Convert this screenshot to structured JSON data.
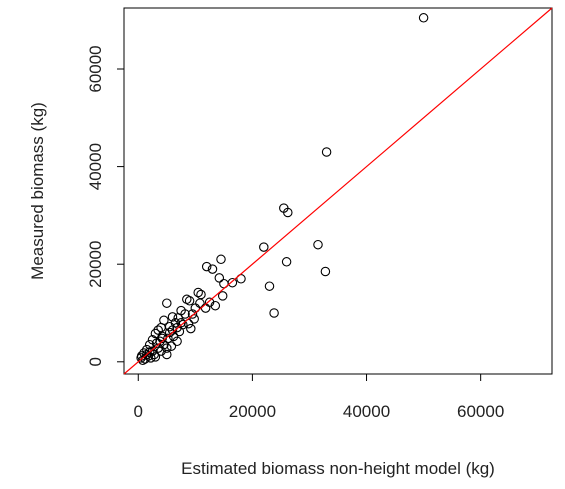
{
  "chart_data": {
    "type": "scatter",
    "title": "",
    "xlabel": "Estimated biomass non-height model (kg)",
    "ylabel": "Measured biomass (kg)",
    "xlim": [
      -2500,
      72500
    ],
    "ylim": [
      -2500,
      72500
    ],
    "xticks": [
      0,
      20000,
      40000,
      60000
    ],
    "yticks": [
      0,
      20000,
      40000,
      60000
    ],
    "grid": false,
    "legend": "none",
    "reference_line": {
      "label": "",
      "slope": 1,
      "intercept": 0,
      "color": "#ff0000"
    },
    "marker": {
      "shape": "circle-open",
      "color": "#000000"
    },
    "series": [
      {
        "name": "",
        "points": [
          [
            50000,
            70500
          ],
          [
            33000,
            43000
          ],
          [
            25500,
            31500
          ],
          [
            26200,
            30600
          ],
          [
            22000,
            23500
          ],
          [
            31500,
            24000
          ],
          [
            32800,
            18500
          ],
          [
            26000,
            20500
          ],
          [
            23000,
            15500
          ],
          [
            23800,
            10000
          ],
          [
            14500,
            21000
          ],
          [
            12000,
            19500
          ],
          [
            13000,
            19000
          ],
          [
            14200,
            17200
          ],
          [
            15000,
            16000
          ],
          [
            16500,
            16200
          ],
          [
            18000,
            17000
          ],
          [
            14800,
            13500
          ],
          [
            11000,
            13800
          ],
          [
            10500,
            14200
          ],
          [
            12500,
            12200
          ],
          [
            13500,
            11500
          ],
          [
            11800,
            11000
          ],
          [
            10000,
            11000
          ],
          [
            9000,
            12500
          ],
          [
            8500,
            12800
          ],
          [
            7500,
            10500
          ],
          [
            8200,
            9800
          ],
          [
            9500,
            9800
          ],
          [
            7000,
            9000
          ],
          [
            6500,
            8000
          ],
          [
            6000,
            9200
          ],
          [
            5000,
            12000
          ],
          [
            4500,
            8500
          ],
          [
            5500,
            7200
          ],
          [
            6800,
            7000
          ],
          [
            7800,
            7600
          ],
          [
            8800,
            7800
          ],
          [
            9200,
            6800
          ],
          [
            4000,
            7000
          ],
          [
            3500,
            6500
          ],
          [
            3000,
            5800
          ],
          [
            4200,
            5200
          ],
          [
            5200,
            4800
          ],
          [
            6200,
            5200
          ],
          [
            7200,
            6200
          ],
          [
            2500,
            4500
          ],
          [
            2000,
            3500
          ],
          [
            3200,
            3800
          ],
          [
            4500,
            3500
          ],
          [
            5800,
            3200
          ],
          [
            6800,
            4200
          ],
          [
            1500,
            2500
          ],
          [
            2500,
            2200
          ],
          [
            3500,
            2800
          ],
          [
            1000,
            1800
          ],
          [
            1800,
            1200
          ],
          [
            2800,
            1500
          ],
          [
            4000,
            2200
          ],
          [
            5000,
            2800
          ],
          [
            500,
            800
          ],
          [
            1200,
            600
          ],
          [
            2200,
            800
          ],
          [
            800,
            300
          ],
          [
            1500,
            1500
          ],
          [
            600,
            1200
          ],
          [
            3000,
            1000
          ],
          [
            2000,
            2000
          ],
          [
            3800,
            4200
          ],
          [
            5500,
            6000
          ],
          [
            5000,
            1500
          ],
          [
            4200,
            4800
          ],
          [
            6000,
            6500
          ],
          [
            7500,
            8000
          ],
          [
            9800,
            8800
          ],
          [
            10800,
            12000
          ]
        ]
      }
    ]
  }
}
